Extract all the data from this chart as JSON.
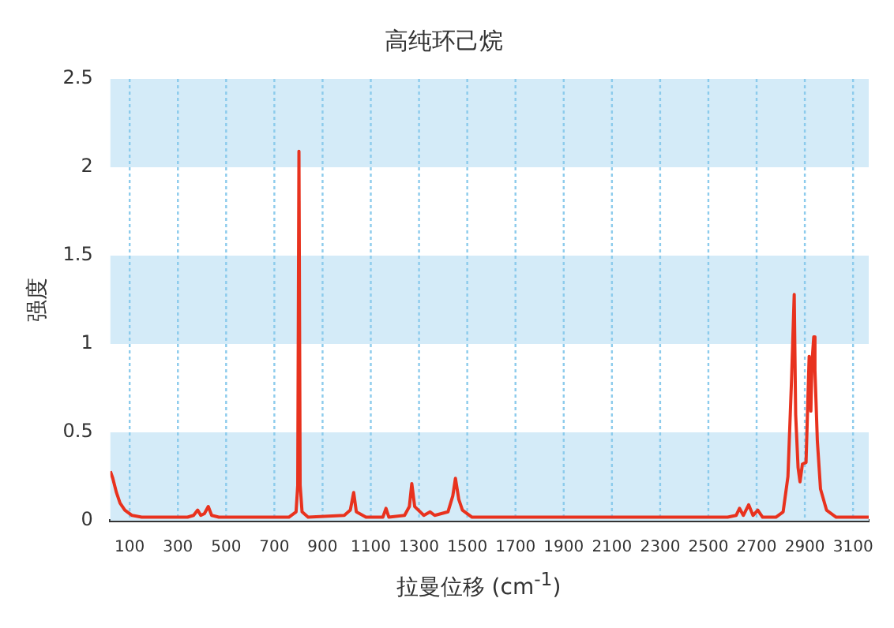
{
  "chart_data": {
    "type": "line",
    "title": "高纯环己烷",
    "xlabel": "拉曼位移 (cm$^{-1}$)",
    "ylabel": "强度",
    "x": [
      20,
      30,
      45,
      60,
      80,
      110,
      150,
      250,
      340,
      365,
      382,
      395,
      410,
      426,
      440,
      470,
      600,
      760,
      790,
      797,
      802,
      807,
      815,
      840,
      990,
      1015,
      1029,
      1040,
      1080,
      1150,
      1163,
      1175,
      1240,
      1260,
      1270,
      1282,
      1320,
      1346,
      1365,
      1420,
      1440,
      1451,
      1465,
      1480,
      1520,
      1700,
      2000,
      2300,
      2580,
      2615,
      2629,
      2645,
      2667,
      2685,
      2705,
      2725,
      2780,
      2810,
      2830,
      2845,
      2856,
      2862,
      2872,
      2880,
      2890,
      2905,
      2918,
      2925,
      2930,
      2937,
      2942,
      2952,
      2965,
      2990,
      3030,
      3165
    ],
    "series": [
      {
        "color": "#e8321e",
        "values": [
          0.28,
          0.24,
          0.16,
          0.1,
          0.06,
          0.03,
          0.02,
          0.02,
          0.02,
          0.03,
          0.06,
          0.03,
          0.04,
          0.08,
          0.03,
          0.02,
          0.02,
          0.02,
          0.05,
          0.2,
          2.09,
          0.2,
          0.05,
          0.02,
          0.03,
          0.06,
          0.16,
          0.05,
          0.02,
          0.02,
          0.07,
          0.02,
          0.03,
          0.08,
          0.21,
          0.08,
          0.03,
          0.05,
          0.03,
          0.05,
          0.14,
          0.24,
          0.12,
          0.06,
          0.02,
          0.02,
          0.02,
          0.02,
          0.02,
          0.03,
          0.07,
          0.03,
          0.09,
          0.03,
          0.06,
          0.02,
          0.02,
          0.05,
          0.25,
          0.8,
          1.28,
          0.6,
          0.3,
          0.22,
          0.32,
          0.33,
          0.93,
          0.62,
          0.9,
          1.04,
          0.85,
          0.45,
          0.18,
          0.06,
          0.02,
          0.02
        ]
      }
    ],
    "xlim": [
      20,
      3165
    ],
    "ylim": [
      0,
      2.5
    ],
    "xticks": [
      100,
      300,
      500,
      700,
      900,
      1100,
      1300,
      1500,
      1700,
      1900,
      2100,
      2300,
      2500,
      2700,
      2900,
      3100
    ],
    "yticks": [
      0,
      0.5,
      1,
      1.5,
      2,
      2.5
    ],
    "bands": [
      {
        "axis": "y",
        "from": 0,
        "to": 0.5,
        "color": "#d4ebf8"
      },
      {
        "axis": "y",
        "from": 1,
        "to": 1.5,
        "color": "#d4ebf8"
      },
      {
        "axis": "y",
        "from": 2,
        "to": 2.5,
        "color": "#d4ebf8"
      }
    ],
    "grid": "x",
    "legend": false,
    "marker": "none",
    "line_style": "solid"
  }
}
